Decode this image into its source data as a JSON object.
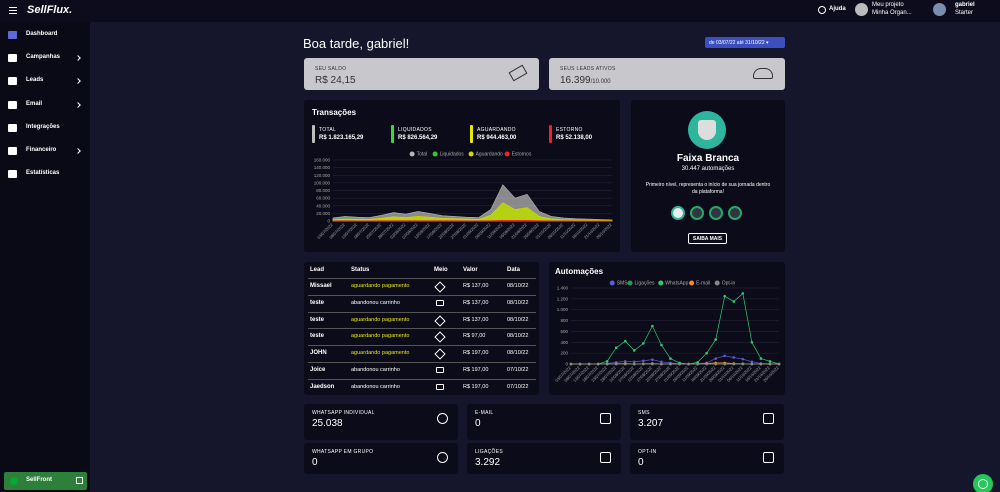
{
  "header": {
    "brand": "SellFlux.",
    "help": "Ajuda",
    "project": "Meu projeto",
    "organization": "Minha Organ...",
    "user": "gabriel",
    "plan": "Starter"
  },
  "sidebar": {
    "items": [
      {
        "label": "Dashboard",
        "submenu": false
      },
      {
        "label": "Campanhas",
        "submenu": true
      },
      {
        "label": "Leads",
        "submenu": true
      },
      {
        "label": "Email",
        "submenu": true
      },
      {
        "label": "Integrações",
        "submenu": false
      },
      {
        "label": "Financeiro",
        "submenu": true
      },
      {
        "label": "Estatísticas",
        "submenu": false
      }
    ],
    "footer": "SellFront"
  },
  "greeting": "Boa tarde, gabriel!",
  "date_range": "de 03/07/22 até 31/10/22",
  "balance": {
    "label": "SEU SALDO",
    "value": "R$ 24,15"
  },
  "leads": {
    "label": "SEUS LEADS ATIVOS",
    "value": "16.399",
    "limit": "/10.000"
  },
  "transactions": {
    "title": "Transações",
    "summary": [
      {
        "label": "TOTAL",
        "value": "R$ 1.823.165,29",
        "color": "#bdbdbd"
      },
      {
        "label": "LIQUIDADOS",
        "value": "R$ 826.564,29",
        "color": "#33dd33"
      },
      {
        "label": "AGUARDANDO",
        "value": "R$ 944.463,00",
        "color": "#e8e800"
      },
      {
        "label": "ESTORNO",
        "value": "R$ 52.138,00",
        "color": "#ee2222"
      }
    ],
    "chart_data": {
      "type": "area",
      "categories": [
        "03/07/2022",
        "08/07/2022",
        "13/07/2022",
        "18/07/2022",
        "23/07/2022",
        "28/07/2022",
        "02/08/2022",
        "07/08/2022",
        "12/08/2022",
        "17/08/2022",
        "22/08/2022",
        "27/08/2022",
        "01/09/2022",
        "06/09/2022",
        "11/09/2022",
        "16/09/2022",
        "21/09/2022",
        "26/09/2022",
        "01/10/2022",
        "06/10/2022",
        "11/10/2022",
        "16/10/2022",
        "21/10/2022",
        "26/10/2022"
      ],
      "series": [
        {
          "name": "Total",
          "color": "#b5b5b5",
          "values": [
            8000,
            12000,
            10000,
            9000,
            15000,
            22000,
            18000,
            25000,
            20000,
            14000,
            12000,
            10000,
            9000,
            30000,
            95000,
            60000,
            70000,
            25000,
            12000,
            8000,
            6000,
            5000,
            4000,
            3000
          ]
        },
        {
          "name": "Liquidados",
          "color": "#33cc33",
          "values": [
            4000,
            6000,
            5000,
            4000,
            7000,
            10000,
            8000,
            12000,
            9000,
            6000,
            5000,
            4000,
            4000,
            14000,
            45000,
            28000,
            33000,
            12000,
            6000,
            4000,
            3000,
            2500,
            2000,
            1500
          ]
        },
        {
          "name": "Aguardando",
          "color": "#d8d800",
          "values": [
            3500,
            5000,
            4500,
            4500,
            7000,
            11000,
            9000,
            12000,
            10000,
            7000,
            6000,
            5500,
            4500,
            15000,
            48000,
            30000,
            35000,
            12000,
            5500,
            3500,
            2800,
            2300,
            1800,
            1400
          ]
        },
        {
          "name": "Estornos",
          "color": "#ee2222",
          "values": [
            500,
            1000,
            500,
            500,
            1000,
            1000,
            1000,
            1000,
            1000,
            1000,
            1000,
            500,
            500,
            1000,
            2000,
            2000,
            2000,
            1000,
            500,
            500,
            200,
            200,
            200,
            100
          ]
        }
      ],
      "ylim": [
        0,
        160000
      ],
      "yticks": [
        0,
        {
          "value": 20000,
          "label": "20.000"
        },
        {
          "value": 40000,
          "label": "40.000"
        },
        {
          "value": 60000,
          "label": "60.000"
        },
        {
          "value": 80000,
          "label": "80.000"
        },
        {
          "value": 100000,
          "label": "100.000"
        },
        {
          "value": 120000,
          "label": "120.000"
        },
        {
          "value": 140000,
          "label": "140.000"
        },
        {
          "value": 160000,
          "label": "160.000"
        }
      ],
      "grid": true
    }
  },
  "level": {
    "title": "Faixa Branca",
    "count": "30.447 automações",
    "description": "Primeiro nível, representa o início de sua jornada dentro da plataforma!",
    "button": "SAIBA MAIS"
  },
  "table": {
    "headers": [
      "Lead",
      "Status",
      "Meio",
      "Valor",
      "Data"
    ],
    "rows": [
      {
        "lead": "Missael",
        "status": "aguardando pagamento",
        "status_color": "#e8e800",
        "valor": "R$ 137,00",
        "data": "08/10/22"
      },
      {
        "lead": "teste",
        "status": "abandonou carrinho",
        "status_color": "#ffffff",
        "valor": "R$ 137,00",
        "data": "08/10/22"
      },
      {
        "lead": "teste",
        "status": "aguardando pagamento",
        "status_color": "#e8e800",
        "valor": "R$ 137,00",
        "data": "08/10/22"
      },
      {
        "lead": "teste",
        "status": "aguardando pagamento",
        "status_color": "#e8e800",
        "valor": "R$ 97,00",
        "data": "08/10/22"
      },
      {
        "lead": "JOHN",
        "status": "aguardando pagamento",
        "status_color": "#e8e800",
        "valor": "R$ 197,00",
        "data": "08/10/22"
      },
      {
        "lead": "Joice",
        "status": "abandonou carrinho",
        "status_color": "#ffffff",
        "valor": "R$ 197,00",
        "data": "07/10/22"
      },
      {
        "lead": "Jaedson",
        "status": "abandonou carrinho",
        "status_color": "#ffffff",
        "valor": "R$ 197,00",
        "data": "07/10/22"
      }
    ]
  },
  "automations": {
    "title": "Automações",
    "chart_data": {
      "type": "line",
      "categories": [
        "03/07/2022",
        "08/07/2022",
        "13/07/2022",
        "18/07/2022",
        "23/07/2022",
        "28/07/2022",
        "02/08/2022",
        "07/08/2022",
        "12/08/2022",
        "17/08/2022",
        "22/08/2022",
        "27/08/2022",
        "01/09/2022",
        "06/09/2022",
        "11/09/2022",
        "16/09/2022",
        "21/09/2022",
        "26/09/2022",
        "01/10/2022",
        "06/10/2022",
        "11/10/2022",
        "16/10/2022",
        "21/10/2022",
        "26/10/2022"
      ],
      "series": [
        {
          "name": "SMS",
          "color": "#5b5bd6",
          "values": [
            0,
            0,
            0,
            0,
            10,
            30,
            50,
            40,
            60,
            80,
            40,
            20,
            5,
            0,
            5,
            20,
            100,
            150,
            120,
            90,
            40,
            10,
            5,
            0
          ]
        },
        {
          "name": "Ligações",
          "color": "#1f9e55",
          "values": [
            0,
            0,
            0,
            0,
            0,
            0,
            0,
            0,
            0,
            0,
            0,
            0,
            0,
            0,
            0,
            0,
            0,
            0,
            0,
            0,
            0,
            0,
            0,
            0
          ]
        },
        {
          "name": "WhatsApp",
          "color": "#2ecc71",
          "values": [
            0,
            0,
            0,
            0,
            50,
            300,
            420,
            250,
            380,
            700,
            350,
            100,
            20,
            0,
            30,
            200,
            450,
            1250,
            1150,
            1300,
            400,
            100,
            50,
            0
          ]
        },
        {
          "name": "E-mail",
          "color": "#f08a24",
          "values": [
            0,
            0,
            0,
            0,
            0,
            5,
            10,
            0,
            5,
            10,
            0,
            0,
            0,
            0,
            0,
            10,
            20,
            20,
            10,
            5,
            0,
            0,
            0,
            0
          ]
        },
        {
          "name": "Opt-in",
          "color": "#888888",
          "values": [
            0,
            0,
            0,
            0,
            0,
            0,
            0,
            0,
            0,
            0,
            0,
            0,
            0,
            0,
            0,
            0,
            0,
            0,
            0,
            0,
            0,
            0,
            0,
            0
          ]
        }
      ],
      "ylim": [
        0,
        1400
      ],
      "yticks": [
        0,
        200,
        400,
        600,
        800,
        {
          "value": 1000,
          "label": "1.000"
        },
        {
          "value": 1200,
          "label": "1.200"
        },
        {
          "value": 1400,
          "label": "1.400"
        }
      ],
      "grid": true
    }
  },
  "stats": [
    {
      "label": "WHATSAPP INDIVIDUAL",
      "value": "25.038"
    },
    {
      "label": "E-MAIL",
      "value": "0"
    },
    {
      "label": "SMS",
      "value": "3.207"
    },
    {
      "label": "WHATSAPP EM GRUPO",
      "value": "0"
    },
    {
      "label": "LIGAÇÕES",
      "value": "3.292"
    },
    {
      "label": "OPT-IN",
      "value": "0"
    }
  ]
}
